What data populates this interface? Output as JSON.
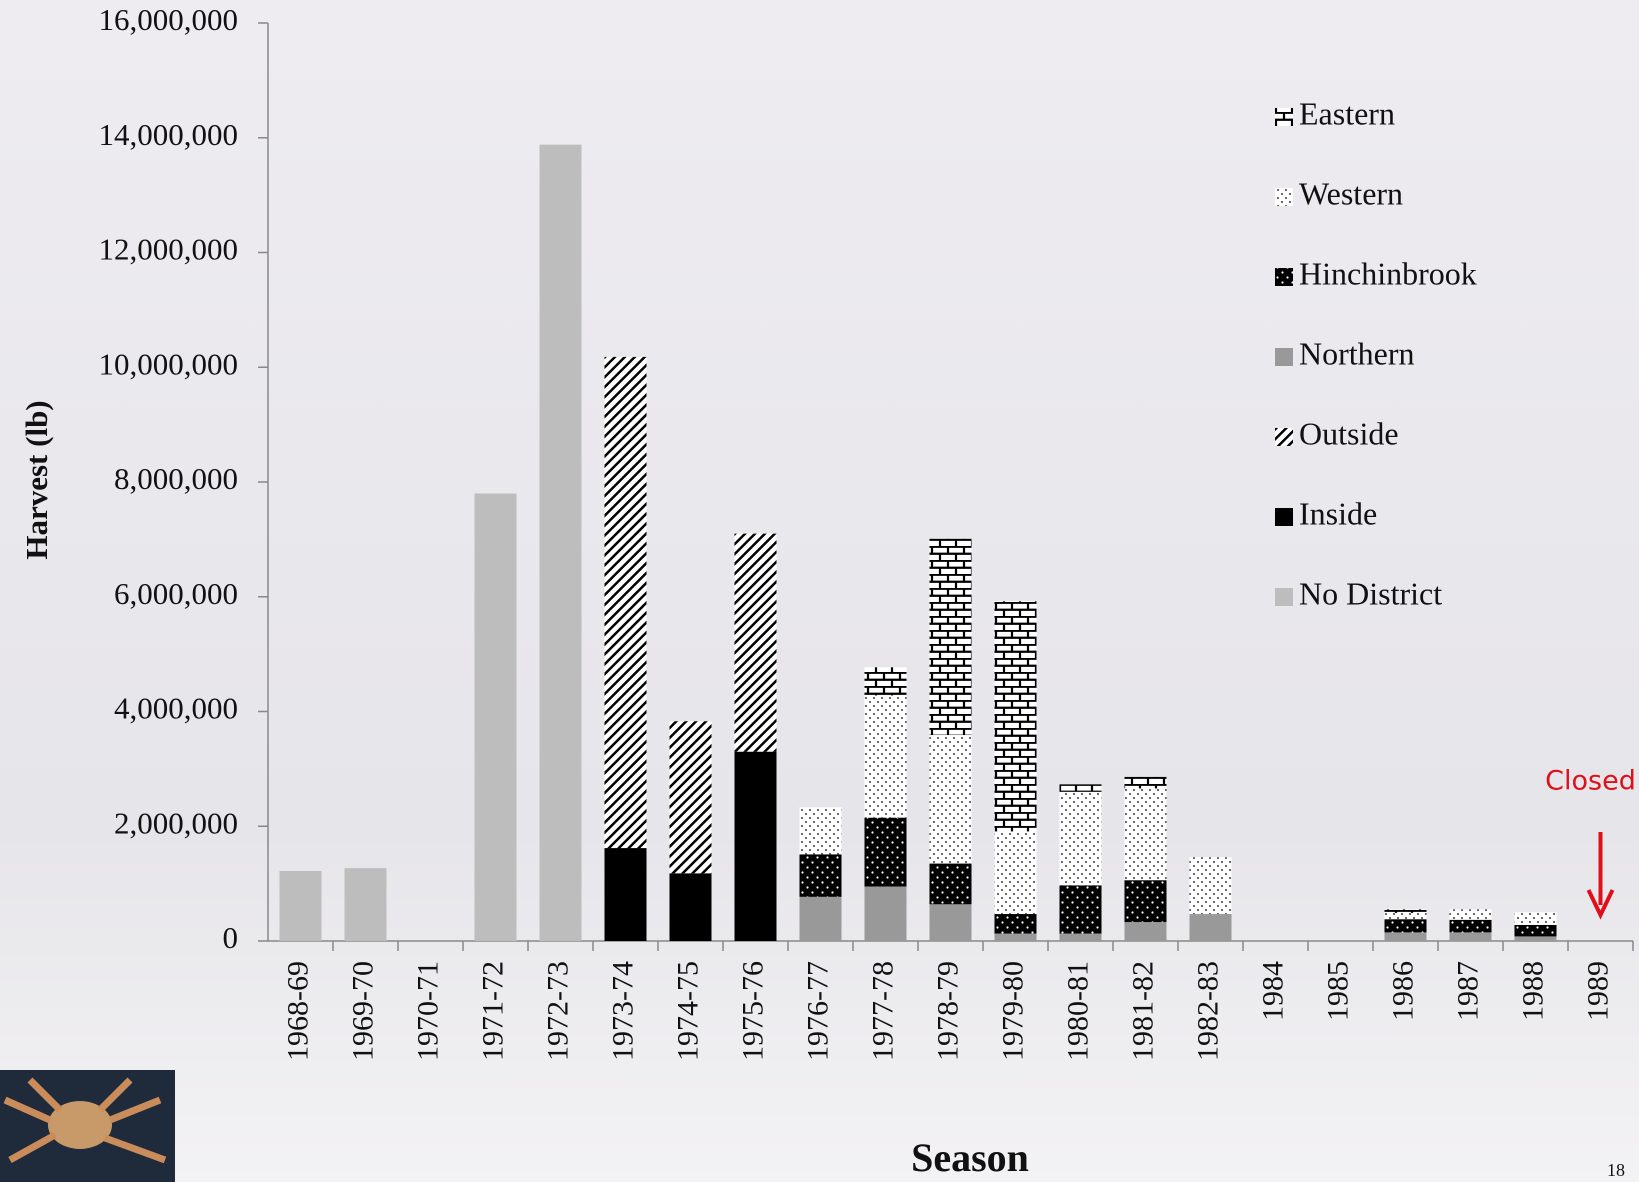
{
  "chart_data": {
    "type": "stacked_bar",
    "y_label": "Harvest (lb)",
    "x_label": "Season",
    "categories": [
      "1968-69",
      "1969-70",
      "1970-71",
      "1971-72",
      "1972-73",
      "1973-74",
      "1974-75",
      "1975-76",
      "1976-77",
      "1977-78",
      "1978-79",
      "1979-80",
      "1980-81",
      "1981-82",
      "1982-83",
      "1984",
      "1985",
      "1986",
      "1987",
      "1988",
      "1989"
    ],
    "series": [
      {
        "name": "No District",
        "color": "#bdbdbd",
        "pattern": "solid",
        "values": [
          1220000,
          1270000,
          0,
          7800000,
          13880000,
          0,
          0,
          0,
          0,
          0,
          0,
          0,
          0,
          0,
          0,
          0,
          0,
          0,
          0,
          0,
          0
        ]
      },
      {
        "name": "Inside",
        "color": "#000000",
        "pattern": "solid",
        "values": [
          0,
          0,
          0,
          0,
          0,
          1620000,
          1180000,
          3300000,
          0,
          0,
          0,
          0,
          0,
          0,
          0,
          0,
          0,
          0,
          0,
          0,
          0
        ]
      },
      {
        "name": "Outside",
        "color": "#000000",
        "pattern": "hatch",
        "values": [
          0,
          0,
          0,
          0,
          0,
          8560000,
          2650000,
          3800000,
          0,
          0,
          0,
          0,
          0,
          0,
          0,
          0,
          0,
          0,
          0,
          0,
          0
        ]
      },
      {
        "name": "Northern",
        "color": "#999999",
        "pattern": "solid",
        "values": [
          0,
          0,
          0,
          0,
          0,
          0,
          0,
          0,
          770000,
          950000,
          640000,
          130000,
          130000,
          330000,
          470000,
          0,
          0,
          150000,
          150000,
          80000,
          0
        ]
      },
      {
        "name": "Hinchinbrook",
        "color": "#000000",
        "pattern": "dots-on-dark",
        "values": [
          0,
          0,
          0,
          0,
          0,
          0,
          0,
          0,
          740000,
          1200000,
          710000,
          340000,
          840000,
          730000,
          0,
          0,
          0,
          230000,
          220000,
          200000,
          0
        ]
      },
      {
        "name": "Western",
        "color": "#000000",
        "pattern": "dots",
        "values": [
          0,
          0,
          0,
          0,
          0,
          0,
          0,
          0,
          820000,
          2130000,
          2240000,
          1440000,
          1630000,
          1600000,
          990000,
          0,
          0,
          110000,
          180000,
          220000,
          0
        ]
      },
      {
        "name": "Eastern",
        "color": "#000000",
        "pattern": "brick",
        "values": [
          0,
          0,
          0,
          0,
          0,
          0,
          0,
          0,
          0,
          490000,
          3420000,
          4010000,
          130000,
          200000,
          0,
          0,
          0,
          60000,
          0,
          0,
          0
        ]
      }
    ],
    "ylim": [
      0,
      16000000
    ],
    "yticks": [
      0,
      {
        "value": 2000000,
        "label": "2,000,000"
      },
      {
        "value": 4000000,
        "label": "4,000,000"
      },
      {
        "value": 6000000,
        "label": "6,000,000"
      },
      {
        "value": 8000000,
        "label": "8,000,000"
      },
      {
        "value": 10000000,
        "label": "10,000,000"
      },
      {
        "value": 12000000,
        "label": "12,000,000"
      },
      {
        "value": 14000000,
        "label": "14,000,000"
      },
      {
        "value": 16000000,
        "label": "16,000,000"
      }
    ],
    "legend": "upper right",
    "annotation": "Closed",
    "annotation_color": "#e0101a",
    "page_number": "18"
  }
}
